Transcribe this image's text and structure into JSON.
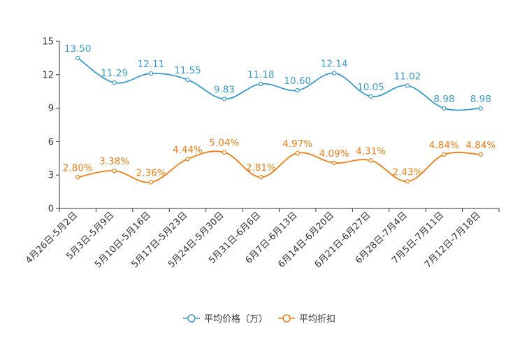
{
  "chart_data": {
    "type": "line",
    "title": "",
    "xlabel": "",
    "ylabel": "",
    "ylim": [
      0,
      15
    ],
    "yticks": [
      0,
      3,
      6,
      9,
      12,
      15
    ],
    "grid": false,
    "legend_position": "bottom-center",
    "categories": [
      "4月26日-5月2日",
      "5月3日-5月9日",
      "5月10日-5月16日",
      "5月17日-5月23日",
      "5月24日-5月30日",
      "5月31日-6月6日",
      "6月7日-6月13日",
      "6月14日-6月20日",
      "6月21日-6月27日",
      "6月28日-7月4日",
      "7月5日-7月11日",
      "7月12日-7月18日"
    ],
    "series": [
      {
        "name": "平均价格（万）",
        "color": "#3a9ccd",
        "values": [
          13.5,
          11.29,
          12.11,
          11.55,
          9.83,
          11.18,
          10.6,
          12.14,
          10.05,
          11.02,
          8.98,
          8.98
        ],
        "labels": [
          "13.50",
          "11.29",
          "12.11",
          "11.55",
          "9.83",
          "11.18",
          "10.60",
          "12.14",
          "10.05",
          "11.02",
          "8.98",
          "8.98"
        ]
      },
      {
        "name": "平均折扣",
        "color": "#f07d14",
        "values": [
          2.8,
          3.38,
          2.36,
          4.44,
          5.04,
          2.81,
          4.97,
          4.09,
          4.31,
          2.43,
          4.84,
          4.84
        ],
        "labels": [
          "2.80%",
          "3.38%",
          "2.36%",
          "4.44%",
          "5.04%",
          "2.81%",
          "4.97%",
          "4.09%",
          "4.31%",
          "2.43%",
          "4.84%",
          "4.84%"
        ]
      }
    ]
  }
}
